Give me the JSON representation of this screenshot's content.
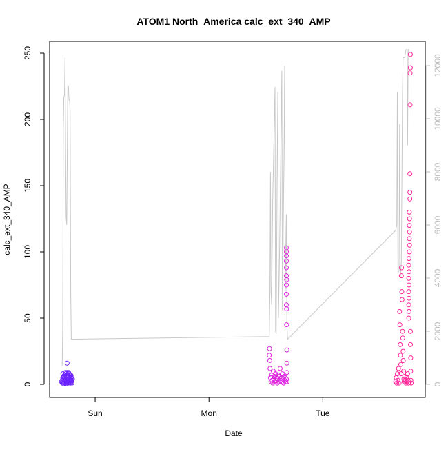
{
  "chart_data": {
    "type": "scatter",
    "title": "ATOM1 North_America calc_ext_340_AMP",
    "xlabel": "Date",
    "ylabel": "calc_ext_340_AMP",
    "x_unit": "days",
    "x_ticks": [
      {
        "value": 1,
        "label": "Sun"
      },
      {
        "value": 2,
        "label": "Mon"
      },
      {
        "value": 3,
        "label": "Tue"
      }
    ],
    "xlim": [
      0.6,
      3.9
    ],
    "ylim": [
      0,
      250
    ],
    "y_ticks": [
      0,
      50,
      100,
      150,
      200,
      250
    ],
    "y2lim": [
      0,
      12500
    ],
    "y2_ticks": [
      0,
      2000,
      4000,
      6000,
      8000,
      10000,
      12000
    ],
    "colors": {
      "line": "#c8c8c8",
      "series_1": "#6b22ff",
      "series_2": "#dd22dd",
      "series_3": "#ff2299",
      "secondary_axis": "#bdbdbd"
    },
    "line_series": {
      "axis": "right",
      "points": [
        [
          0.71,
          700
        ],
        [
          0.715,
          2200
        ],
        [
          0.72,
          9600
        ],
        [
          0.725,
          10800
        ],
        [
          0.73,
          10900
        ],
        [
          0.735,
          12300
        ],
        [
          0.74,
          9000
        ],
        [
          0.745,
          6300
        ],
        [
          0.75,
          6000
        ],
        [
          0.755,
          8700
        ],
        [
          0.76,
          11300
        ],
        [
          0.765,
          11200
        ],
        [
          0.77,
          10700
        ],
        [
          0.775,
          10700
        ],
        [
          0.78,
          10300
        ],
        [
          0.785,
          3400
        ],
        [
          0.79,
          1700
        ],
        [
          2.53,
          1800
        ],
        [
          2.535,
          3500
        ],
        [
          2.54,
          8000
        ],
        [
          2.545,
          3500
        ],
        [
          2.55,
          3000
        ],
        [
          2.56,
          7000
        ],
        [
          2.57,
          9000
        ],
        [
          2.58,
          11200
        ],
        [
          2.585,
          2000
        ],
        [
          2.59,
          1900
        ],
        [
          2.6,
          8600
        ],
        [
          2.605,
          11000
        ],
        [
          2.61,
          2500
        ],
        [
          2.62,
          5000
        ],
        [
          2.63,
          8500
        ],
        [
          2.64,
          11800
        ],
        [
          2.645,
          2800
        ],
        [
          2.65,
          5000
        ],
        [
          2.66,
          9000
        ],
        [
          2.665,
          12000
        ],
        [
          2.67,
          3500
        ],
        [
          2.68,
          6400
        ],
        [
          2.685,
          2300
        ],
        [
          2.69,
          1700
        ],
        [
          3.64,
          5800
        ],
        [
          3.65,
          6000
        ],
        [
          3.655,
          11000
        ],
        [
          3.66,
          4200
        ],
        [
          3.67,
          4300
        ],
        [
          3.675,
          9800
        ],
        [
          3.68,
          4000
        ],
        [
          3.69,
          4600
        ],
        [
          3.7,
          11000
        ],
        [
          3.705,
          12300
        ],
        [
          3.71,
          12300
        ],
        [
          3.72,
          12300
        ],
        [
          3.73,
          12600
        ],
        [
          3.74,
          12600
        ],
        [
          3.745,
          9000
        ],
        [
          3.75,
          12600
        ],
        [
          3.76,
          12600
        ]
      ]
    },
    "series": [
      {
        "color": "#6b22ff",
        "points": [
          [
            0.71,
            3
          ],
          [
            0.712,
            1
          ],
          [
            0.715,
            5
          ],
          [
            0.718,
            2
          ],
          [
            0.72,
            6
          ],
          [
            0.722,
            4
          ],
          [
            0.725,
            0.5
          ],
          [
            0.728,
            3
          ],
          [
            0.73,
            7
          ],
          [
            0.733,
            2
          ],
          [
            0.735,
            5
          ],
          [
            0.737,
            1
          ],
          [
            0.74,
            4
          ],
          [
            0.742,
            8
          ],
          [
            0.745,
            2
          ],
          [
            0.747,
            6
          ],
          [
            0.75,
            3
          ],
          [
            0.752,
            9
          ],
          [
            0.754,
            16
          ],
          [
            0.756,
            5
          ],
          [
            0.758,
            2
          ],
          [
            0.76,
            7
          ],
          [
            0.763,
            4
          ],
          [
            0.765,
            1
          ],
          [
            0.768,
            6
          ],
          [
            0.77,
            3
          ],
          [
            0.772,
            8
          ],
          [
            0.775,
            2
          ],
          [
            0.777,
            5
          ],
          [
            0.78,
            4
          ],
          [
            0.783,
            1
          ],
          [
            0.785,
            7
          ],
          [
            0.787,
            3
          ],
          [
            0.79,
            5
          ],
          [
            0.792,
            2
          ],
          [
            0.795,
            6
          ],
          [
            0.797,
            3
          ],
          [
            0.8,
            4
          ],
          [
            0.704,
            2
          ],
          [
            0.716,
            8
          ],
          [
            0.726,
            6
          ],
          [
            0.738,
            9
          ],
          [
            0.748,
            0.5
          ],
          [
            0.757,
            4
          ],
          [
            0.766,
            9
          ],
          [
            0.776,
            7
          ],
          [
            0.786,
            2
          ],
          [
            0.796,
            1
          ]
        ]
      },
      {
        "color": "#dd22dd",
        "points": [
          [
            2.53,
            22
          ],
          [
            2.532,
            27
          ],
          [
            2.534,
            18
          ],
          [
            2.536,
            12
          ],
          [
            2.54,
            5
          ],
          [
            2.545,
            2
          ],
          [
            2.55,
            7
          ],
          [
            2.555,
            3
          ],
          [
            2.56,
            1
          ],
          [
            2.565,
            10
          ],
          [
            2.57,
            4
          ],
          [
            2.575,
            6
          ],
          [
            2.58,
            2
          ],
          [
            2.585,
            8
          ],
          [
            2.59,
            3
          ],
          [
            2.595,
            5
          ],
          [
            2.6,
            1
          ],
          [
            2.605,
            4
          ],
          [
            2.61,
            7
          ],
          [
            2.615,
            2
          ],
          [
            2.62,
            6
          ],
          [
            2.625,
            12
          ],
          [
            2.63,
            3
          ],
          [
            2.635,
            5
          ],
          [
            2.64,
            2
          ],
          [
            2.645,
            8
          ],
          [
            2.65,
            4
          ],
          [
            2.655,
            1
          ],
          [
            2.66,
            6
          ],
          [
            2.665,
            3
          ],
          [
            2.67,
            5
          ],
          [
            2.675,
            2
          ],
          [
            2.68,
            4
          ],
          [
            2.68,
            60
          ],
          [
            2.68,
            68
          ],
          [
            2.68,
            75
          ],
          [
            2.68,
            82
          ],
          [
            2.68,
            88
          ],
          [
            2.68,
            93
          ],
          [
            2.68,
            97
          ],
          [
            2.68,
            100
          ],
          [
            2.68,
            103
          ],
          [
            2.682,
            45
          ],
          [
            2.682,
            57
          ],
          [
            2.682,
            79
          ],
          [
            2.684,
            26
          ],
          [
            2.684,
            16
          ],
          [
            2.684,
            9
          ],
          [
            2.686,
            2
          ]
        ]
      },
      {
        "color": "#ff2299",
        "points": [
          [
            3.64,
            2
          ],
          [
            3.645,
            5
          ],
          [
            3.65,
            1
          ],
          [
            3.655,
            8
          ],
          [
            3.66,
            3
          ],
          [
            3.665,
            12
          ],
          [
            3.67,
            1
          ],
          [
            3.675,
            55
          ],
          [
            3.677,
            45
          ],
          [
            3.68,
            30
          ],
          [
            3.682,
            22
          ],
          [
            3.685,
            15
          ],
          [
            3.687,
            8
          ],
          [
            3.69,
            82
          ],
          [
            3.692,
            88
          ],
          [
            3.694,
            70
          ],
          [
            3.696,
            64
          ],
          [
            3.7,
            40
          ],
          [
            3.702,
            35
          ],
          [
            3.705,
            25
          ],
          [
            3.707,
            18
          ],
          [
            3.71,
            10
          ],
          [
            3.712,
            4
          ],
          [
            3.715,
            2
          ],
          [
            3.72,
            6
          ],
          [
            3.725,
            3
          ],
          [
            3.73,
            1
          ],
          [
            3.735,
            5
          ],
          [
            3.74,
            2
          ],
          [
            3.745,
            8
          ],
          [
            3.75,
            3
          ],
          [
            3.752,
            1
          ],
          [
            3.755,
            50
          ],
          [
            3.755,
            60
          ],
          [
            3.755,
            70
          ],
          [
            3.755,
            80
          ],
          [
            3.755,
            90
          ],
          [
            3.757,
            55
          ],
          [
            3.757,
            65
          ],
          [
            3.757,
            75
          ],
          [
            3.757,
            85
          ],
          [
            3.757,
            95
          ],
          [
            3.76,
            100
          ],
          [
            3.76,
            110
          ],
          [
            3.76,
            120
          ],
          [
            3.76,
            130
          ],
          [
            3.762,
            105
          ],
          [
            3.762,
            115
          ],
          [
            3.762,
            125
          ],
          [
            3.765,
            140
          ],
          [
            3.765,
            145
          ],
          [
            3.765,
            159
          ],
          [
            3.767,
            211
          ],
          [
            3.767,
            235
          ],
          [
            3.769,
            239
          ],
          [
            3.769,
            249
          ],
          [
            3.77,
            40
          ],
          [
            3.77,
            30
          ],
          [
            3.772,
            20
          ],
          [
            3.772,
            10
          ],
          [
            3.774,
            3
          ],
          [
            3.776,
            1
          ]
        ]
      }
    ]
  }
}
